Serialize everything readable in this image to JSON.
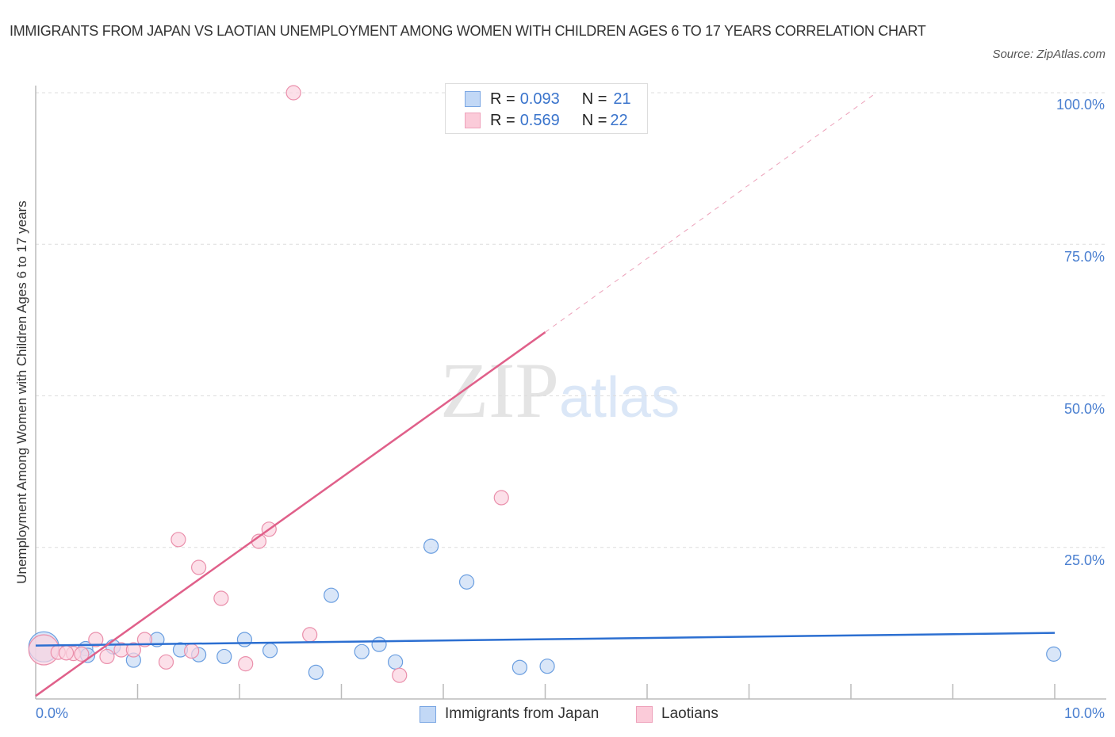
{
  "header": {
    "title": "IMMIGRANTS FROM JAPAN VS LAOTIAN UNEMPLOYMENT AMONG WOMEN WITH CHILDREN AGES 6 TO 17 YEARS CORRELATION CHART",
    "source": "Source: ZipAtlas.com"
  },
  "watermark": {
    "zip": "ZIP",
    "atlas": "atlas"
  },
  "legend_stats": [
    {
      "r_label": "R = ",
      "r_value": "0.093",
      "n_label": "N = ",
      "n_value": "21",
      "color": "#a9c8f3"
    },
    {
      "r_label": "R = ",
      "r_value": "0.569",
      "n_label": "N = ",
      "n_value": "22",
      "color": "#f7b9cb"
    }
  ],
  "axes": {
    "y_label": "Unemployment Among Women with Children Ages 6 to 17 years",
    "y_ticks": [
      "100.0%",
      "75.0%",
      "50.0%",
      "25.0%"
    ],
    "x_ticks": [
      "0.0%",
      "10.0%"
    ]
  },
  "bottom_legend": [
    {
      "label": "Immigrants from Japan",
      "color": "#a9c8f3"
    },
    {
      "label": "Laotians",
      "color": "#f7b9cb"
    }
  ],
  "colors": {
    "japan_fill": "#c9dcf5",
    "japan_stroke": "#6a9ee0",
    "japan_line": "#2c6fd1",
    "laotian_fill": "#fbd3df",
    "laotian_stroke": "#ea8fab",
    "laotian_line": "#e0608a",
    "tick_label": "#4a7fd0",
    "grid": "#dddddd"
  },
  "chart_data": {
    "type": "scatter",
    "title": "Immigrants from Japan vs Laotian Unemployment Among Women with Children Ages 6 to 17 years Correlation Chart",
    "xlabel": "",
    "ylabel": "Unemployment Among Women with Children Ages 6 to 17 years",
    "xlim": [
      0,
      10
    ],
    "ylim": [
      0,
      100
    ],
    "x_unit": "%",
    "y_unit": "%",
    "grid": true,
    "legend_position": "bottom",
    "series": [
      {
        "name": "Immigrants from Japan",
        "R": 0.093,
        "N": 21,
        "points": [
          {
            "x": 0.08,
            "y": 8.6,
            "size": "large"
          },
          {
            "x": 0.49,
            "y": 8.3
          },
          {
            "x": 0.51,
            "y": 7.2
          },
          {
            "x": 0.76,
            "y": 8.6
          },
          {
            "x": 0.96,
            "y": 6.4
          },
          {
            "x": 1.19,
            "y": 9.8
          },
          {
            "x": 1.42,
            "y": 8.1
          },
          {
            "x": 1.6,
            "y": 7.3
          },
          {
            "x": 1.85,
            "y": 7.0
          },
          {
            "x": 2.05,
            "y": 9.8
          },
          {
            "x": 2.3,
            "y": 8.0
          },
          {
            "x": 2.75,
            "y": 4.4
          },
          {
            "x": 2.9,
            "y": 17.1
          },
          {
            "x": 3.2,
            "y": 7.8
          },
          {
            "x": 3.37,
            "y": 9.0
          },
          {
            "x": 3.53,
            "y": 6.1
          },
          {
            "x": 3.88,
            "y": 25.2
          },
          {
            "x": 4.23,
            "y": 19.3
          },
          {
            "x": 4.75,
            "y": 5.2
          },
          {
            "x": 5.02,
            "y": 5.4
          },
          {
            "x": 9.99,
            "y": 7.4
          }
        ],
        "trend": {
          "x0": 0,
          "y0": 8.8,
          "x1": 10,
          "y1": 10.9
        }
      },
      {
        "name": "Laotians",
        "R": 0.569,
        "N": 22,
        "points": [
          {
            "x": 0.08,
            "y": 8.1,
            "size": "large"
          },
          {
            "x": 0.22,
            "y": 7.7
          },
          {
            "x": 0.37,
            "y": 7.5
          },
          {
            "x": 0.59,
            "y": 9.8
          },
          {
            "x": 0.7,
            "y": 7.0
          },
          {
            "x": 0.84,
            "y": 8.1
          },
          {
            "x": 0.96,
            "y": 8.1
          },
          {
            "x": 1.07,
            "y": 9.8
          },
          {
            "x": 1.28,
            "y": 6.1
          },
          {
            "x": 1.4,
            "y": 26.3
          },
          {
            "x": 1.53,
            "y": 7.9
          },
          {
            "x": 1.6,
            "y": 21.7
          },
          {
            "x": 1.82,
            "y": 16.6
          },
          {
            "x": 2.06,
            "y": 5.8
          },
          {
            "x": 2.19,
            "y": 26.0
          },
          {
            "x": 2.29,
            "y": 28.0
          },
          {
            "x": 2.53,
            "y": 100.0
          },
          {
            "x": 2.69,
            "y": 10.6
          },
          {
            "x": 3.57,
            "y": 3.9
          },
          {
            "x": 4.57,
            "y": 33.2
          },
          {
            "x": 0.3,
            "y": 7.6
          },
          {
            "x": 0.45,
            "y": 7.4
          }
        ],
        "trend": {
          "x0": 0,
          "y0": 0.5,
          "x1": 5.0,
          "y1": 60.5,
          "dashed_extension_to": {
            "x": 8.25,
            "y": 100
          }
        }
      }
    ]
  }
}
